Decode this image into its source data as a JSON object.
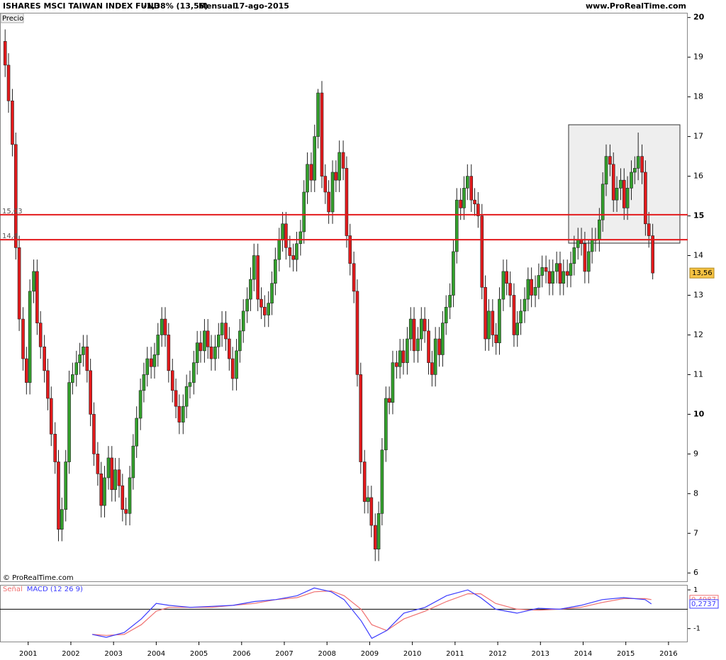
{
  "header": {
    "title": "ISHARES MSCI TAIWAN INDEX FUND",
    "change": "-1,38% (13,56)",
    "period": "Mensual",
    "date": "17-ago-2015",
    "site": "www.ProRealTime.com",
    "panel_label": "Precio",
    "copyright": "© ProRealTime.com"
  },
  "chart_data": [
    {
      "type": "candlestick",
      "x": [
        2000.46,
        2000.54,
        2000.63,
        2000.71,
        2000.79,
        2000.88,
        2000.96,
        2001.04,
        2001.13,
        2001.21,
        2001.29,
        2001.38,
        2001.46,
        2001.54,
        2001.63,
        2001.71,
        2001.79,
        2001.88,
        2001.96,
        2002.04,
        2002.13,
        2002.21,
        2002.29,
        2002.38,
        2002.46,
        2002.54,
        2002.63,
        2002.71,
        2002.79,
        2002.88,
        2002.96,
        2003.04,
        2003.13,
        2003.21,
        2003.29,
        2003.38,
        2003.46,
        2003.54,
        2003.63,
        2003.71,
        2003.79,
        2003.88,
        2003.96,
        2004.04,
        2004.13,
        2004.21,
        2004.29,
        2004.38,
        2004.46,
        2004.54,
        2004.63,
        2004.71,
        2004.79,
        2004.88,
        2004.96,
        2005.04,
        2005.13,
        2005.21,
        2005.29,
        2005.38,
        2005.46,
        2005.54,
        2005.63,
        2005.71,
        2005.79,
        2005.88,
        2005.96,
        2006.04,
        2006.13,
        2006.21,
        2006.29,
        2006.38,
        2006.46,
        2006.54,
        2006.63,
        2006.71,
        2006.79,
        2006.88,
        2006.96,
        2007.04,
        2007.13,
        2007.21,
        2007.29,
        2007.38,
        2007.46,
        2007.54,
        2007.63,
        2007.71,
        2007.79,
        2007.88,
        2007.96,
        2008.04,
        2008.13,
        2008.21,
        2008.29,
        2008.38,
        2008.46,
        2008.54,
        2008.63,
        2008.71,
        2008.79,
        2008.88,
        2008.96,
        2009.04,
        2009.13,
        2009.21,
        2009.29,
        2009.38,
        2009.46,
        2009.54,
        2009.63,
        2009.71,
        2009.79,
        2009.88,
        2009.96,
        2010.04,
        2010.13,
        2010.21,
        2010.29,
        2010.38,
        2010.46,
        2010.54,
        2010.63,
        2010.71,
        2010.79,
        2010.88,
        2010.96,
        2011.04,
        2011.13,
        2011.21,
        2011.29,
        2011.38,
        2011.46,
        2011.54,
        2011.63,
        2011.71,
        2011.79,
        2011.88,
        2011.96,
        2012.04,
        2012.13,
        2012.21,
        2012.29,
        2012.38,
        2012.46,
        2012.54,
        2012.63,
        2012.71,
        2012.79,
        2012.88,
        2012.96,
        2013.04,
        2013.13,
        2013.21,
        2013.29,
        2013.38,
        2013.46,
        2013.54,
        2013.63,
        2013.71,
        2013.79,
        2013.88,
        2013.96,
        2014.04,
        2014.13,
        2014.21,
        2014.29,
        2014.38,
        2014.46,
        2014.54,
        2014.63,
        2014.71,
        2014.79,
        2014.88,
        2014.96,
        2015.04,
        2015.13,
        2015.21,
        2015.29,
        2015.38,
        2015.46,
        2015.54,
        2015.63
      ],
      "open": [
        19.4,
        18.8,
        17.9,
        16.8,
        14.2,
        12.4,
        11.4,
        10.8,
        13.1,
        13.6,
        12.3,
        11.7,
        11.1,
        10.4,
        9.5,
        8.8,
        7.1,
        7.6,
        8.8,
        10.8,
        11.0,
        11.3,
        11.5,
        11.7,
        11.1,
        10.0,
        9.0,
        8.5,
        7.7,
        8.4,
        8.9,
        8.1,
        8.6,
        8.2,
        7.6,
        7.5,
        8.4,
        9.2,
        9.9,
        10.6,
        11.0,
        11.4,
        11.2,
        11.5,
        12.0,
        12.4,
        12.0,
        11.1,
        10.6,
        10.2,
        9.8,
        10.2,
        10.7,
        10.8,
        11.3,
        11.8,
        11.6,
        12.1,
        11.7,
        11.4,
        11.7,
        12.0,
        12.3,
        11.9,
        11.4,
        10.9,
        11.6,
        12.1,
        12.6,
        12.9,
        13.4,
        14.0,
        12.9,
        12.7,
        12.5,
        12.8,
        13.3,
        13.9,
        14.4,
        14.8,
        14.2,
        14.0,
        13.9,
        14.3,
        14.6,
        15.6,
        16.3,
        15.9,
        17.0,
        18.1,
        16.0,
        15.6,
        15.1,
        16.1,
        15.9,
        16.6,
        16.2,
        14.5,
        13.8,
        13.1,
        11.0,
        8.8,
        7.8,
        7.9,
        7.2,
        6.6,
        7.5,
        9.1,
        10.4,
        10.3,
        11.3,
        11.2,
        11.6,
        11.3,
        11.9,
        12.4,
        11.6,
        11.9,
        12.4,
        12.1,
        11.3,
        11.0,
        11.9,
        11.5,
        12.3,
        12.7,
        13.0,
        14.1,
        15.4,
        15.2,
        15.7,
        16.0,
        15.4,
        15.3,
        15.0,
        13.2,
        11.9,
        12.6,
        12.0,
        11.8,
        12.9,
        13.6,
        13.3,
        13.0,
        12.0,
        12.3,
        12.6,
        12.9,
        13.4,
        13.0,
        13.2,
        13.5,
        13.7,
        13.6,
        13.3,
        13.6,
        13.8,
        13.3,
        13.6,
        13.5,
        13.8,
        14.2,
        14.4,
        14.3,
        13.6,
        14.1,
        14.4,
        14.4,
        14.9,
        15.8,
        16.5,
        16.3,
        15.4,
        15.7,
        15.9,
        15.2,
        15.7,
        16.1,
        16.2,
        16.5,
        16.1,
        14.8,
        14.5
      ],
      "high": [
        19.7,
        19.1,
        18.2,
        17.1,
        14.5,
        12.7,
        11.7,
        13.4,
        13.9,
        13.9,
        12.6,
        12.0,
        11.4,
        10.7,
        9.8,
        9.1,
        7.9,
        9.1,
        11.1,
        11.3,
        11.6,
        11.8,
        12.0,
        12.0,
        11.4,
        10.3,
        9.3,
        8.8,
        8.7,
        9.2,
        9.2,
        8.9,
        8.9,
        8.5,
        7.9,
        8.7,
        9.5,
        10.2,
        10.9,
        11.3,
        11.7,
        11.7,
        11.8,
        12.3,
        12.7,
        12.7,
        12.3,
        11.4,
        10.9,
        10.5,
        10.5,
        11.0,
        11.1,
        11.6,
        12.1,
        12.1,
        12.4,
        12.4,
        12.0,
        12.0,
        12.3,
        12.6,
        12.6,
        12.2,
        11.7,
        11.9,
        12.4,
        12.9,
        13.2,
        13.7,
        14.3,
        14.3,
        13.2,
        13.0,
        13.1,
        13.6,
        14.2,
        14.7,
        15.1,
        15.1,
        14.5,
        14.3,
        14.6,
        14.9,
        15.9,
        16.6,
        16.6,
        17.3,
        18.2,
        18.4,
        16.3,
        15.9,
        16.4,
        16.4,
        16.9,
        16.9,
        16.5,
        14.8,
        14.1,
        13.4,
        11.3,
        9.1,
        8.2,
        8.2,
        7.5,
        7.8,
        9.4,
        10.7,
        10.7,
        11.6,
        11.6,
        11.9,
        11.9,
        12.2,
        12.7,
        12.7,
        12.2,
        12.7,
        12.7,
        12.4,
        11.6,
        12.2,
        12.2,
        12.6,
        13.0,
        13.3,
        14.4,
        15.7,
        15.7,
        16.0,
        16.3,
        16.3,
        15.7,
        15.6,
        15.3,
        13.5,
        12.9,
        12.9,
        12.3,
        13.2,
        13.9,
        13.9,
        13.6,
        13.3,
        12.6,
        12.9,
        13.2,
        13.7,
        13.7,
        13.5,
        13.8,
        14.0,
        14.0,
        13.9,
        13.9,
        14.1,
        14.1,
        13.9,
        13.9,
        14.1,
        14.5,
        14.7,
        14.7,
        14.6,
        14.4,
        14.7,
        14.7,
        15.2,
        16.1,
        16.8,
        16.8,
        16.6,
        16.0,
        16.2,
        16.2,
        16.0,
        16.4,
        16.5,
        17.1,
        16.8,
        16.4,
        15.1,
        14.8
      ],
      "low": [
        18.5,
        17.6,
        16.5,
        13.9,
        12.1,
        11.1,
        10.5,
        10.5,
        12.8,
        12.0,
        11.4,
        10.8,
        10.1,
        9.2,
        8.5,
        6.8,
        6.8,
        7.3,
        8.5,
        10.5,
        10.7,
        11.0,
        11.2,
        10.8,
        9.7,
        8.7,
        8.2,
        7.4,
        7.4,
        8.1,
        7.8,
        7.8,
        7.9,
        7.3,
        7.2,
        7.2,
        8.1,
        8.9,
        9.6,
        10.3,
        10.7,
        10.9,
        10.9,
        11.2,
        11.7,
        11.7,
        10.8,
        10.3,
        9.9,
        9.5,
        9.5,
        9.9,
        10.4,
        10.5,
        11.0,
        11.3,
        11.3,
        11.4,
        11.1,
        11.1,
        11.4,
        11.7,
        11.6,
        11.1,
        10.6,
        10.6,
        11.3,
        11.8,
        12.3,
        12.6,
        13.1,
        12.6,
        12.4,
        12.2,
        12.2,
        12.5,
        13.0,
        13.6,
        14.1,
        13.9,
        13.7,
        13.6,
        13.6,
        14.0,
        14.3,
        15.3,
        15.6,
        15.6,
        16.7,
        15.7,
        15.3,
        14.8,
        14.8,
        15.6,
        15.6,
        15.9,
        14.2,
        13.5,
        12.8,
        10.7,
        8.5,
        7.5,
        7.5,
        6.9,
        6.3,
        6.3,
        7.2,
        8.8,
        10.0,
        10.0,
        10.9,
        10.9,
        11.0,
        11.0,
        11.6,
        11.3,
        11.3,
        11.6,
        11.8,
        11.0,
        10.7,
        10.7,
        11.2,
        11.2,
        12.0,
        12.4,
        12.7,
        13.8,
        14.9,
        14.9,
        15.4,
        15.1,
        15.0,
        14.7,
        12.9,
        11.6,
        11.6,
        11.7,
        11.5,
        11.5,
        12.6,
        13.0,
        12.7,
        11.7,
        11.7,
        12.0,
        12.3,
        12.6,
        12.7,
        12.7,
        12.9,
        13.2,
        13.3,
        13.0,
        13.0,
        13.3,
        13.0,
        13.0,
        13.2,
        13.2,
        13.5,
        13.9,
        14.0,
        13.3,
        13.3,
        13.8,
        14.1,
        14.1,
        14.6,
        15.5,
        16.0,
        15.1,
        15.1,
        15.4,
        14.9,
        14.9,
        15.4,
        15.8,
        15.9,
        15.8,
        14.5,
        14.2,
        13.4
      ],
      "close": [
        18.8,
        17.9,
        16.8,
        14.2,
        12.4,
        11.4,
        10.8,
        13.1,
        13.6,
        12.3,
        11.7,
        11.1,
        10.4,
        9.5,
        8.8,
        7.1,
        7.6,
        8.8,
        10.8,
        11.0,
        11.3,
        11.5,
        11.7,
        11.1,
        10.0,
        9.0,
        8.5,
        7.7,
        8.4,
        8.9,
        8.1,
        8.6,
        8.2,
        7.6,
        7.5,
        8.4,
        9.2,
        9.9,
        10.6,
        11.0,
        11.4,
        11.2,
        11.5,
        12.0,
        12.4,
        12.0,
        11.1,
        10.6,
        10.2,
        9.8,
        10.2,
        10.7,
        10.8,
        11.3,
        11.8,
        11.6,
        12.1,
        11.7,
        11.4,
        11.7,
        12.0,
        12.3,
        11.9,
        11.4,
        10.9,
        11.6,
        12.1,
        12.6,
        12.9,
        13.4,
        14.0,
        12.9,
        12.7,
        12.5,
        12.8,
        13.3,
        13.9,
        14.4,
        14.8,
        14.2,
        14.0,
        13.9,
        14.3,
        14.6,
        15.6,
        16.3,
        15.9,
        17.0,
        18.1,
        16.0,
        15.6,
        15.1,
        16.1,
        15.9,
        16.6,
        16.2,
        14.5,
        13.8,
        13.1,
        11.0,
        8.8,
        7.8,
        7.9,
        7.2,
        6.6,
        7.5,
        9.1,
        10.4,
        10.3,
        11.3,
        11.2,
        11.6,
        11.3,
        11.9,
        12.4,
        11.6,
        11.9,
        12.4,
        12.1,
        11.3,
        11.0,
        11.9,
        11.5,
        12.3,
        12.7,
        13.0,
        14.1,
        15.4,
        15.2,
        15.7,
        16.0,
        15.4,
        15.3,
        15.0,
        13.2,
        11.9,
        12.6,
        12.0,
        11.8,
        12.9,
        13.6,
        13.3,
        13.0,
        12.0,
        12.3,
        12.6,
        12.9,
        13.4,
        13.0,
        13.2,
        13.5,
        13.7,
        13.6,
        13.3,
        13.6,
        13.8,
        13.3,
        13.6,
        13.5,
        13.8,
        14.2,
        14.4,
        14.3,
        13.6,
        14.1,
        14.4,
        14.4,
        14.9,
        15.8,
        16.5,
        16.3,
        15.4,
        15.7,
        15.9,
        15.2,
        15.7,
        16.1,
        16.2,
        16.5,
        16.1,
        14.8,
        14.5,
        13.56
      ],
      "last_close": {
        "value": 13.56,
        "label": "13,56"
      },
      "up_color": "#33a02c",
      "down_color": "#e31a1c",
      "hlines": [
        {
          "value": 15.03,
          "label": "15,03"
        },
        {
          "value": 14.4,
          "label": "14,4"
        }
      ],
      "hline_color": "#e31a1c",
      "xlim": [
        2000.34,
        2016.45
      ],
      "ylim": [
        5.79,
        20.12
      ],
      "xticks": [
        2001,
        2002,
        2003,
        2004,
        2005,
        2006,
        2007,
        2008,
        2009,
        2010,
        2011,
        2012,
        2013,
        2014,
        2015,
        2016
      ],
      "yticks": [
        6,
        7,
        8,
        9,
        10,
        11,
        12,
        13,
        14,
        15,
        16,
        17,
        18,
        19,
        20
      ]
    },
    {
      "type": "line",
      "x": [
        2002.5,
        2002.83,
        2003.25,
        2003.65,
        2004.0,
        2004.3,
        2004.8,
        2005.3,
        2005.8,
        2006.3,
        2006.8,
        2007.3,
        2007.7,
        2008.1,
        2008.4,
        2008.8,
        2009.05,
        2009.4,
        2009.8,
        2010.3,
        2010.8,
        2011.3,
        2011.6,
        2011.95,
        2012.45,
        2012.95,
        2013.45,
        2013.95,
        2014.45,
        2014.95,
        2015.45,
        2015.6
      ],
      "series": [
        {
          "name": "MACD (12 26 9)",
          "color": "#3b3bff",
          "values": [
            -1.3,
            -1.45,
            -1.2,
            -0.5,
            0.3,
            0.2,
            0.1,
            0.15,
            0.2,
            0.4,
            0.5,
            0.7,
            1.1,
            0.9,
            0.5,
            -0.6,
            -1.5,
            -1.1,
            -0.2,
            0.1,
            0.7,
            1.0,
            0.6,
            0.0,
            -0.2,
            0.05,
            0.0,
            0.2,
            0.5,
            0.6,
            0.5,
            0.2737
          ],
          "last_label": "0,2737"
        },
        {
          "name": "Señal",
          "color": "#f07070",
          "values": [
            -1.3,
            -1.35,
            -1.3,
            -0.8,
            -0.1,
            0.1,
            0.1,
            0.1,
            0.2,
            0.3,
            0.5,
            0.6,
            0.9,
            0.95,
            0.7,
            0.0,
            -0.8,
            -1.1,
            -0.5,
            -0.1,
            0.4,
            0.8,
            0.8,
            0.3,
            0.0,
            -0.05,
            0.0,
            0.1,
            0.35,
            0.55,
            0.55,
            0.4987
          ],
          "last_label": "0,4987"
        }
      ],
      "xlim": [
        2000.34,
        2016.45
      ],
      "ylim": [
        -1.67,
        1.26
      ],
      "yticks": [
        -1,
        1
      ]
    }
  ]
}
